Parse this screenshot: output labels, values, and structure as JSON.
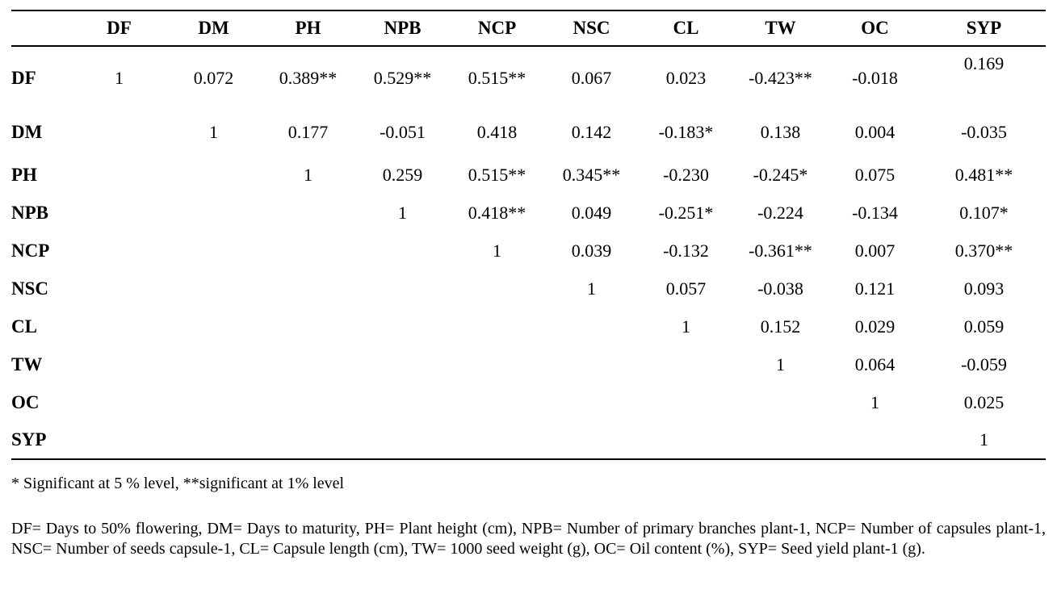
{
  "table": {
    "columns": [
      "",
      "DF",
      "DM",
      "PH",
      "NPB",
      "NCP",
      "NSC",
      "CL",
      "TW",
      "OC",
      "SYP"
    ],
    "rows": [
      {
        "label": "DF",
        "cells": [
          "1",
          "0.072",
          "0.389**",
          "0.529**",
          "0.515**",
          "0.067",
          "0.023",
          "-0.423**",
          "-0.018",
          "0.169"
        ]
      },
      {
        "label": "DM",
        "cells": [
          "",
          "1",
          "0.177",
          "-0.051",
          "0.418",
          "0.142",
          "-0.183*",
          "0.138",
          "0.004",
          "-0.035"
        ]
      },
      {
        "label": "PH",
        "cells": [
          "",
          "",
          "1",
          "0.259",
          "0.515**",
          "0.345**",
          "-0.230",
          "-0.245*",
          "0.075",
          "0.481**"
        ]
      },
      {
        "label": "NPB",
        "cells": [
          "",
          "",
          "",
          "1",
          "0.418**",
          "0.049",
          "-0.251*",
          "-0.224",
          "-0.134",
          "0.107*"
        ]
      },
      {
        "label": "NCP",
        "cells": [
          "",
          "",
          "",
          "",
          "1",
          "0.039",
          "-0.132",
          "-0.361**",
          "0.007",
          "0.370**"
        ]
      },
      {
        "label": "NSC",
        "cells": [
          "",
          "",
          "",
          "",
          "",
          "1",
          "0.057",
          "-0.038",
          "0.121",
          "0.093"
        ]
      },
      {
        "label": "CL",
        "cells": [
          "",
          "",
          "",
          "",
          "",
          "",
          "1",
          "0.152",
          "0.029",
          "0.059"
        ]
      },
      {
        "label": "TW",
        "cells": [
          "",
          "",
          "",
          "",
          "",
          "",
          "",
          "1",
          "0.064",
          "-0.059"
        ]
      },
      {
        "label": "OC",
        "cells": [
          "",
          "",
          "",
          "",
          "",
          "",
          "",
          "",
          "1",
          "0.025"
        ]
      },
      {
        "label": "SYP",
        "cells": [
          "",
          "",
          "",
          "",
          "",
          "",
          "",
          "",
          "",
          "1"
        ]
      }
    ]
  },
  "notes": {
    "significance": "* Significant at 5 % level, **significant at 1% level",
    "abbreviations": "DF= Days to 50% flowering, DM= Days to maturity, PH= Plant height (cm), NPB= Number of primary branches plant-1, NCP= Number of capsules plant-1, NSC= Number of seeds capsule-1, CL= Capsule length (cm), TW= 1000 seed weight (g), OC= Oil content (%), SYP= Seed yield plant-1 (g)."
  },
  "chart_data": {
    "type": "table",
    "title": "Correlation matrix of agronomic traits",
    "variables": [
      "DF",
      "DM",
      "PH",
      "NPB",
      "NCP",
      "NSC",
      "CL",
      "TW",
      "OC",
      "SYP"
    ],
    "upper_triangle_correlations": {
      "DF": {
        "DF": 1,
        "DM": 0.072,
        "PH": 0.389,
        "NPB": 0.529,
        "NCP": 0.515,
        "NSC": 0.067,
        "CL": 0.023,
        "TW": -0.423,
        "OC": -0.018,
        "SYP": 0.169
      },
      "DM": {
        "DM": 1,
        "PH": 0.177,
        "NPB": -0.051,
        "NCP": 0.418,
        "NSC": 0.142,
        "CL": -0.183,
        "TW": 0.138,
        "OC": 0.004,
        "SYP": -0.035
      },
      "PH": {
        "PH": 1,
        "NPB": 0.259,
        "NCP": 0.515,
        "NSC": 0.345,
        "CL": -0.23,
        "TW": -0.245,
        "OC": 0.075,
        "SYP": 0.481
      },
      "NPB": {
        "NPB": 1,
        "NCP": 0.418,
        "NSC": 0.049,
        "CL": -0.251,
        "TW": -0.224,
        "OC": -0.134,
        "SYP": 0.107
      },
      "NCP": {
        "NCP": 1,
        "NSC": 0.039,
        "CL": -0.132,
        "TW": -0.361,
        "OC": 0.007,
        "SYP": 0.37
      },
      "NSC": {
        "NSC": 1,
        "CL": 0.057,
        "TW": -0.038,
        "OC": 0.121,
        "SYP": 0.093
      },
      "CL": {
        "CL": 1,
        "TW": 0.152,
        "OC": 0.029,
        "SYP": 0.059
      },
      "TW": {
        "TW": 1,
        "OC": 0.064,
        "SYP": -0.059
      },
      "OC": {
        "OC": 1,
        "SYP": 0.025
      },
      "SYP": {
        "SYP": 1
      }
    },
    "significance_markers": "** = significant at 1% level, * = significant at 5% level"
  }
}
